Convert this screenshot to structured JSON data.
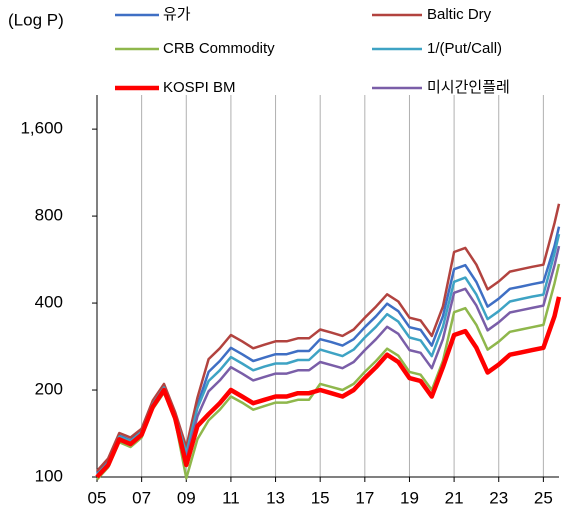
{
  "chart_data": {
    "type": "line",
    "y_axis_label": "(Log P)",
    "log_scale": true,
    "grid": "x",
    "x": [
      5,
      5.5,
      6,
      6.5,
      7,
      7.5,
      8,
      8.5,
      9,
      9.5,
      10,
      10.5,
      11,
      11.5,
      12,
      12.5,
      13,
      13.5,
      14,
      14.5,
      15,
      15.5,
      16,
      16.5,
      17,
      17.5,
      18,
      18.5,
      19,
      19.5,
      20,
      20.5,
      21,
      21.5,
      22,
      22.5,
      23,
      23.5,
      24,
      24.5,
      25,
      25.5,
      25.7
    ],
    "xlim": [
      5,
      25.7
    ],
    "xticks": [
      {
        "value": 5,
        "label": "05"
      },
      {
        "value": 7,
        "label": "07"
      },
      {
        "value": 9,
        "label": "09"
      },
      11,
      13,
      15,
      17,
      19,
      21,
      23,
      25
    ],
    "ylim": [
      100,
      2100
    ],
    "yticks": [
      100,
      200,
      400,
      800,
      {
        "value": 1600,
        "label": "1,600"
      }
    ],
    "series": [
      {
        "name": "유가",
        "color": "#3f6fc4",
        "width": 2.5,
        "values": [
          103,
          113,
          139,
          134,
          144,
          180,
          206,
          165,
          121,
          177,
          231,
          252,
          280,
          266,
          252,
          259,
          266,
          266,
          273,
          273,
          300,
          293,
          285,
          300,
          330,
          360,
          398,
          375,
          330,
          323,
          285,
          360,
          524,
          541,
          473,
          389,
          414,
          448,
          456,
          465,
          473,
          630,
          735
        ]
      },
      {
        "name": "Baltic Dry",
        "color": "#b2433f",
        "width": 2.5,
        "values": [
          105,
          116,
          142,
          137,
          147,
          184,
          210,
          168,
          127,
          188,
          256,
          279,
          310,
          295,
          279,
          287,
          295,
          295,
          302,
          302,
          324,
          316,
          308,
          324,
          356,
          389,
          429,
          405,
          356,
          348,
          308,
          389,
          601,
          621,
          543,
          446,
          475,
          514,
          524,
          534,
          543,
          756,
          882
        ]
      },
      {
        "name": "CRB Commodity",
        "color": "#8fb74c",
        "width": 2.5,
        "values": [
          98,
          108,
          132,
          127,
          137,
          172,
          196,
          157,
          99,
          135,
          157,
          171,
          190,
          181,
          171,
          176,
          181,
          181,
          185,
          185,
          210,
          205,
          200,
          210,
          231,
          252,
          278,
          263,
          231,
          226,
          200,
          252,
          372,
          384,
          336,
          276,
          294,
          318,
          324,
          330,
          336,
          468,
          546
        ]
      },
      {
        "name": "1/(Put/Call)",
        "color": "#3ea3c4",
        "width": 2.5,
        "values": [
          102,
          112,
          138,
          133,
          143,
          179,
          204,
          163,
          121,
          173,
          215,
          234,
          260,
          247,
          234,
          241,
          247,
          247,
          254,
          254,
          276,
          269,
          262,
          276,
          304,
          331,
          366,
          345,
          304,
          297,
          262,
          331,
          474,
          490,
          428,
          352,
          375,
          405,
          413,
          421,
          428,
          594,
          693
        ]
      },
      {
        "name": "KOSPI BM",
        "color": "#ff0000",
        "width": 4.5,
        "values": [
          100,
          110,
          135,
          130,
          140,
          175,
          200,
          160,
          110,
          150,
          165,
          180,
          200,
          190,
          180,
          185,
          190,
          190,
          195,
          195,
          200,
          195,
          190,
          200,
          220,
          240,
          265,
          250,
          220,
          215,
          190,
          240,
          310,
          320,
          280,
          230,
          245,
          265,
          270,
          275,
          280,
          360,
          420
        ]
      },
      {
        "name": "미시간인플레",
        "color": "#7a5ea8",
        "width": 2.5,
        "values": [
          100,
          110,
          135,
          130,
          140,
          175,
          200,
          160,
          116,
          162,
          198,
          216,
          240,
          228,
          216,
          222,
          228,
          228,
          234,
          234,
          250,
          244,
          238,
          250,
          275,
          300,
          331,
          313,
          275,
          269,
          238,
          300,
          434,
          448,
          392,
          322,
          343,
          371,
          378,
          385,
          392,
          540,
          630
        ]
      }
    ]
  }
}
